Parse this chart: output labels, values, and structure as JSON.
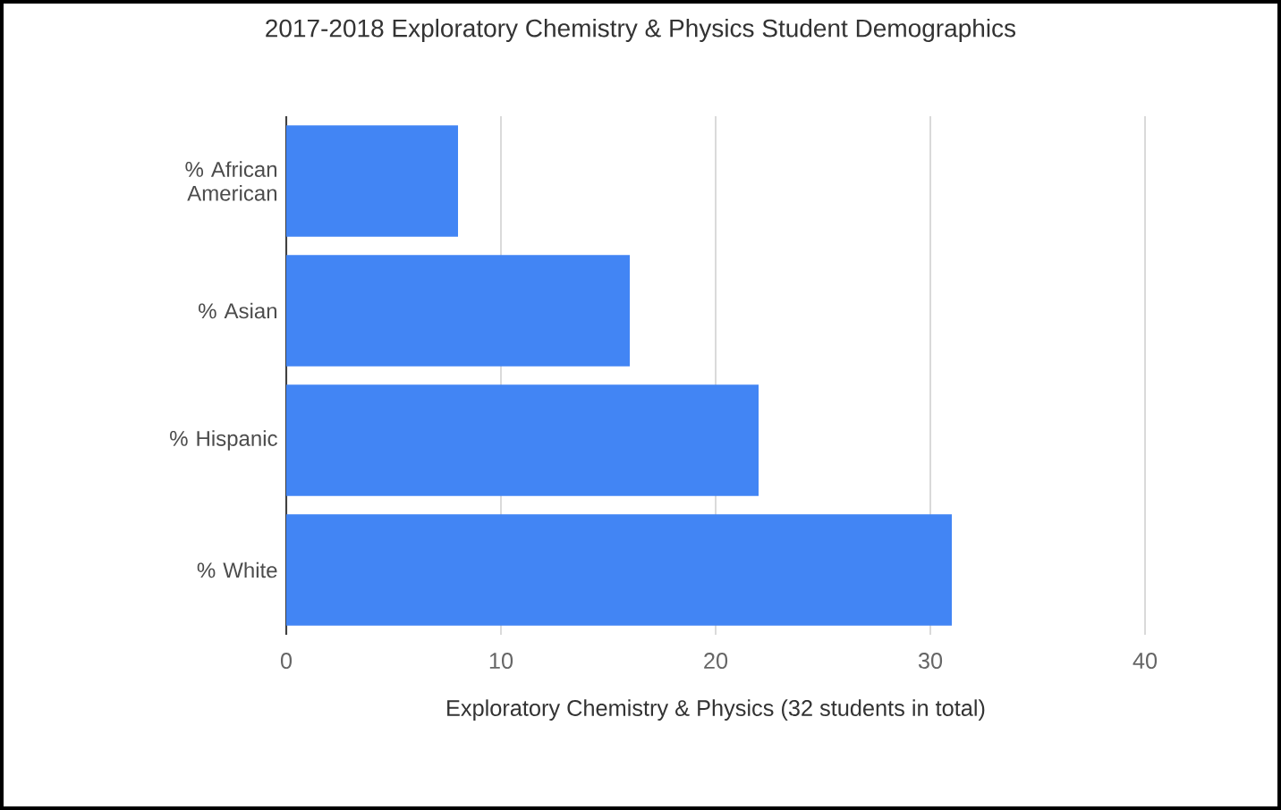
{
  "chart_data": {
    "type": "bar",
    "orientation": "horizontal",
    "title": "2017-2018 Exploratory Chemistry & Physics Student Demographics",
    "xlabel": "Exploratory Chemistry & Physics (32 students in total)",
    "categories": [
      "% African American",
      "% Asian",
      "% Hispanic",
      "% White"
    ],
    "series": [
      {
        "color": "#4285f4",
        "values": [
          8,
          16,
          22,
          31
        ]
      }
    ],
    "xlim": [
      0,
      40
    ],
    "xticks": [
      0,
      10,
      20,
      30,
      40
    ],
    "grid": "x"
  }
}
